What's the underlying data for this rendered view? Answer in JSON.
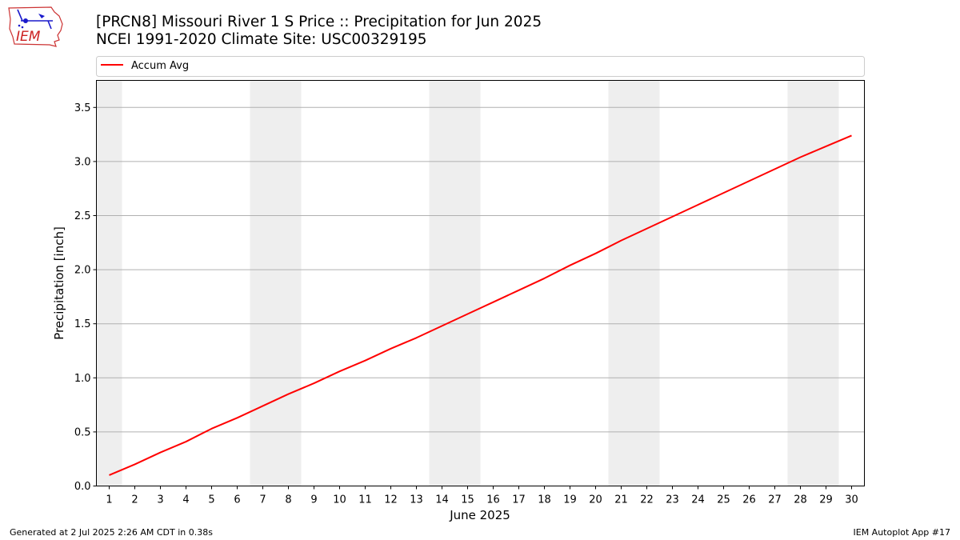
{
  "header": {
    "title_line1": "[PRCN8] Missouri River 1 S Price :: Precipitation for Jun 2025",
    "title_line2": "NCEI 1991-2020 Climate Site: USC00329195",
    "logo_text": "IEM"
  },
  "footer": {
    "left": "Generated at 2 Jul 2025 2:26 AM CDT in 0.38s",
    "right": "IEM Autoplot App #17"
  },
  "colors": {
    "line": "#ff0000",
    "weekend_band": "#eeeeee",
    "grid": "#b0b0b0"
  },
  "chart_data": {
    "type": "line",
    "xlabel": "June 2025",
    "ylabel": "Precipitation [inch]",
    "xlim": [
      0.5,
      30.5
    ],
    "ylim": [
      0.0,
      3.75
    ],
    "x_ticks": [
      1,
      2,
      3,
      4,
      5,
      6,
      7,
      8,
      9,
      10,
      11,
      12,
      13,
      14,
      15,
      16,
      17,
      18,
      19,
      20,
      21,
      22,
      23,
      24,
      25,
      26,
      27,
      28,
      29,
      30
    ],
    "y_ticks": [
      0.0,
      0.5,
      1.0,
      1.5,
      2.0,
      2.5,
      3.0,
      3.5
    ],
    "y_tick_labels": [
      "0.0",
      "0.5",
      "1.0",
      "1.5",
      "2.0",
      "2.5",
      "3.0",
      "3.5"
    ],
    "grid": "horizontal",
    "legend_position": "top",
    "weekend_days": [
      1,
      7,
      8,
      14,
      15,
      21,
      22,
      28,
      29
    ],
    "series": [
      {
        "name": "Accum Avg",
        "color": "#ff0000",
        "x": [
          1,
          2,
          3,
          4,
          5,
          6,
          7,
          8,
          9,
          10,
          11,
          12,
          13,
          14,
          15,
          16,
          17,
          18,
          19,
          20,
          21,
          22,
          23,
          24,
          25,
          26,
          27,
          28,
          29,
          30
        ],
        "values": [
          0.1,
          0.2,
          0.31,
          0.41,
          0.53,
          0.63,
          0.74,
          0.85,
          0.95,
          1.06,
          1.16,
          1.27,
          1.37,
          1.48,
          1.59,
          1.7,
          1.81,
          1.92,
          2.04,
          2.15,
          2.27,
          2.38,
          2.49,
          2.6,
          2.71,
          2.82,
          2.93,
          3.04,
          3.14,
          3.24
        ]
      }
    ]
  }
}
